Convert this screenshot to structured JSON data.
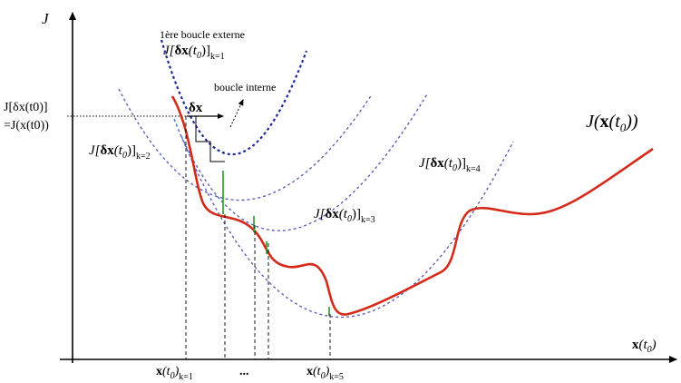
{
  "axes": {
    "y_label": "J",
    "x_label_main": "x",
    "x_label_arg": "(t",
    "x_label_sub": "0",
    "x_label_close": ")"
  },
  "annotations": {
    "outer_loop": "1ère boucle externe",
    "inner_loop": "boucle interne",
    "step": "δx",
    "start_value_line1": "J[δx(t0)]",
    "start_value_line2": "=J(x(t0))"
  },
  "curve_labels": {
    "k1": {
      "prefix": "J[",
      "dx": "δx",
      "arg": "(t",
      "sub": "0",
      "close": ")]",
      "k": "k=1"
    },
    "k2": {
      "prefix": "J[",
      "dx": "δx",
      "arg": "(t",
      "sub": "0",
      "close": ")]",
      "k": "k=2"
    },
    "k3": {
      "prefix": "J[",
      "dx": "δx",
      "arg": "(t",
      "sub": "0",
      "close": ")]",
      "k": "k=3"
    },
    "k4": {
      "prefix": "J[",
      "dx": "δx",
      "arg": "(t",
      "sub": "0",
      "close": ")]",
      "k": "k=4"
    },
    "true_cost": {
      "prefix": "J(",
      "x": "x",
      "arg": "(t",
      "sub": "0",
      "close": "))"
    }
  },
  "x_ticks": {
    "k1": {
      "x": "x",
      "arg": "(t",
      "sub": "0",
      "close": ")",
      "k": "k=1"
    },
    "dots": "...",
    "k5": {
      "x": "x",
      "arg": "(t",
      "sub": "0",
      "close": ")",
      "k": "k=5"
    }
  },
  "colors": {
    "true_curve": "#d42a1a",
    "model_curves": "#1f2a9a",
    "model_curves_light": "#5a63b8",
    "step_segments": "#2a9a2a",
    "axis": "#000000"
  }
}
